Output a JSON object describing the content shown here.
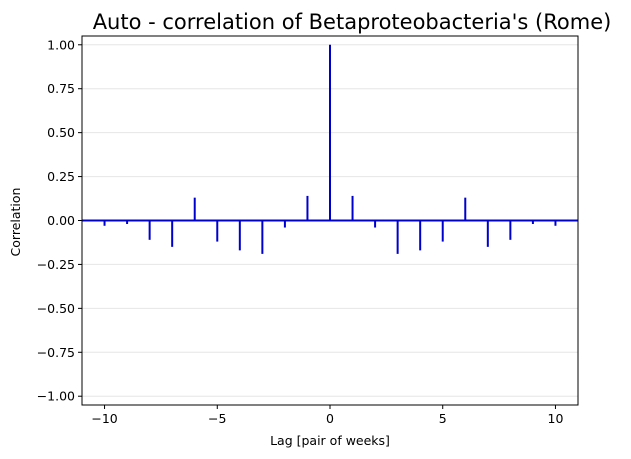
{
  "chart_data": {
    "type": "bar",
    "title": "Auto - correlation of Betaproteobacteria's (Rome)",
    "xlabel": "Lag [pair of weeks]",
    "ylabel": "Correlation",
    "xlim": [
      -11,
      11
    ],
    "ylim": [
      -1.05,
      1.05
    ],
    "x_ticks": [
      -10,
      -5,
      0,
      5,
      10
    ],
    "x_tick_labels": [
      "−10",
      "−5",
      "0",
      "5",
      "10"
    ],
    "y_ticks": [
      1.0,
      0.75,
      0.5,
      0.25,
      0.0,
      -0.25,
      -0.5,
      -0.75,
      -1.0
    ],
    "y_tick_labels": [
      "1.00",
      "0.75",
      "0.50",
      "0.25",
      "0.00",
      "−0.25",
      "−0.50",
      "−0.75",
      "−1.00"
    ],
    "grid": "horizontal",
    "lags": [
      -10,
      -9,
      -8,
      -7,
      -6,
      -5,
      -4,
      -3,
      -2,
      -1,
      0,
      1,
      2,
      3,
      4,
      5,
      6,
      7,
      8,
      9,
      10
    ],
    "values": [
      -0.03,
      -0.02,
      -0.11,
      -0.15,
      0.13,
      -0.12,
      -0.17,
      -0.19,
      -0.04,
      0.14,
      1.0,
      0.14,
      -0.04,
      -0.19,
      -0.17,
      -0.12,
      0.13,
      -0.15,
      -0.11,
      -0.02,
      -0.03
    ],
    "bar_color": "#0000cc",
    "zero_line_color": "#0000cc"
  }
}
